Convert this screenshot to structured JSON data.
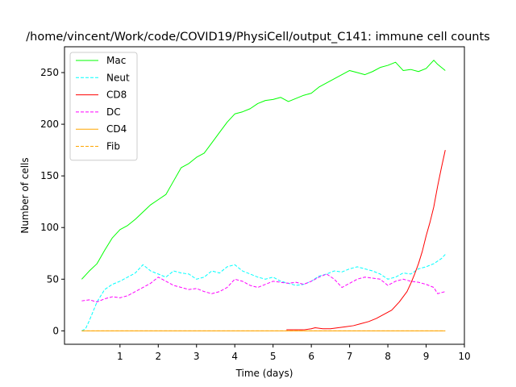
{
  "chart_data": {
    "type": "line",
    "title": "/home/vincent/Work/code/COVID19/PhysiCell/output_C141: immune cell counts",
    "xlabel": "Time (days)",
    "ylabel": "Number of cells",
    "xlim": [
      -0.45,
      10
    ],
    "ylim": [
      -13,
      275
    ],
    "xticks": [
      1,
      2,
      3,
      4,
      5,
      6,
      7,
      8,
      9,
      10
    ],
    "yticks": [
      0,
      50,
      100,
      150,
      200,
      250
    ],
    "legend_position": "top-left",
    "grid": false,
    "series": [
      {
        "name": "Mac",
        "color": "#00ff00",
        "dash": "solid",
        "x": [
          0,
          0.2,
          0.4,
          0.6,
          0.8,
          1.0,
          1.2,
          1.4,
          1.6,
          1.8,
          2.0,
          2.2,
          2.4,
          2.6,
          2.8,
          3.0,
          3.2,
          3.4,
          3.6,
          3.8,
          4.0,
          4.2,
          4.4,
          4.6,
          4.8,
          5.0,
          5.2,
          5.4,
          5.6,
          5.8,
          6.0,
          6.2,
          6.4,
          6.6,
          6.8,
          7.0,
          7.2,
          7.4,
          7.6,
          7.8,
          8.0,
          8.2,
          8.4,
          8.6,
          8.8,
          9.0,
          9.2,
          9.3,
          9.5
        ],
        "y": [
          50,
          58,
          65,
          78,
          90,
          98,
          102,
          108,
          115,
          122,
          127,
          132,
          145,
          158,
          162,
          168,
          172,
          182,
          192,
          202,
          210,
          212,
          215,
          220,
          223,
          224,
          226,
          222,
          225,
          228,
          230,
          236,
          240,
          244,
          248,
          252,
          250,
          248,
          251,
          255,
          257,
          260,
          252,
          253,
          251,
          254,
          262,
          258,
          252
        ]
      },
      {
        "name": "Neut",
        "color": "#00ffff",
        "dash": "dashed",
        "x": [
          0,
          0.1,
          0.2,
          0.4,
          0.6,
          0.8,
          1.0,
          1.2,
          1.4,
          1.6,
          1.8,
          2.0,
          2.2,
          2.4,
          2.6,
          2.8,
          3.0,
          3.2,
          3.4,
          3.6,
          3.8,
          4.0,
          4.2,
          4.4,
          4.6,
          4.8,
          5.0,
          5.2,
          5.4,
          5.6,
          5.8,
          6.0,
          6.2,
          6.4,
          6.6,
          6.8,
          7.0,
          7.2,
          7.4,
          7.6,
          7.8,
          8.0,
          8.2,
          8.4,
          8.6,
          8.8,
          9.0,
          9.2,
          9.4,
          9.5
        ],
        "y": [
          0,
          2,
          10,
          28,
          40,
          45,
          48,
          52,
          56,
          64,
          58,
          55,
          52,
          58,
          56,
          55,
          50,
          52,
          58,
          56,
          62,
          64,
          58,
          55,
          52,
          50,
          52,
          48,
          46,
          44,
          45,
          48,
          53,
          55,
          58,
          57,
          60,
          62,
          60,
          58,
          55,
          50,
          52,
          56,
          55,
          60,
          62,
          65,
          70,
          74
        ]
      },
      {
        "name": "CD8",
        "color": "#ff0000",
        "dash": "solid",
        "x": [
          5.35,
          5.6,
          5.8,
          6.0,
          6.1,
          6.3,
          6.5,
          6.7,
          6.9,
          7.1,
          7.3,
          7.5,
          7.7,
          7.9,
          8.1,
          8.3,
          8.5,
          8.6,
          8.7,
          8.8,
          8.9,
          9.0,
          9.1,
          9.2,
          9.3,
          9.4,
          9.5
        ],
        "y": [
          1,
          1,
          1,
          2,
          3,
          2,
          2,
          3,
          4,
          5,
          7,
          9,
          12,
          16,
          20,
          28,
          38,
          46,
          55,
          65,
          77,
          92,
          105,
          120,
          140,
          158,
          175
        ]
      },
      {
        "name": "DC",
        "color": "#ff00ff",
        "dash": "dashed",
        "x": [
          0,
          0.2,
          0.4,
          0.6,
          0.8,
          1.0,
          1.2,
          1.4,
          1.6,
          1.8,
          2.0,
          2.2,
          2.4,
          2.6,
          2.8,
          3.0,
          3.2,
          3.4,
          3.6,
          3.8,
          4.0,
          4.2,
          4.4,
          4.6,
          4.8,
          5.0,
          5.2,
          5.4,
          5.6,
          5.8,
          6.0,
          6.2,
          6.4,
          6.6,
          6.8,
          7.0,
          7.2,
          7.4,
          7.6,
          7.8,
          8.0,
          8.2,
          8.4,
          8.6,
          8.8,
          9.0,
          9.2,
          9.3,
          9.5
        ],
        "y": [
          29,
          30,
          28,
          31,
          33,
          32,
          34,
          38,
          42,
          46,
          52,
          48,
          44,
          42,
          40,
          41,
          38,
          36,
          38,
          42,
          50,
          48,
          44,
          42,
          45,
          48,
          47,
          46,
          47,
          45,
          48,
          52,
          55,
          50,
          42,
          46,
          50,
          52,
          51,
          50,
          44,
          48,
          50,
          48,
          47,
          45,
          42,
          36,
          38
        ]
      },
      {
        "name": "CD4",
        "color": "#ffa500",
        "dash": "solid",
        "x": [
          0,
          9.5
        ],
        "y": [
          0,
          0
        ]
      },
      {
        "name": "Fib",
        "color": "#ffa500",
        "dash": "dashed",
        "x": [
          0,
          9.5
        ],
        "y": [
          0,
          0
        ]
      }
    ]
  }
}
